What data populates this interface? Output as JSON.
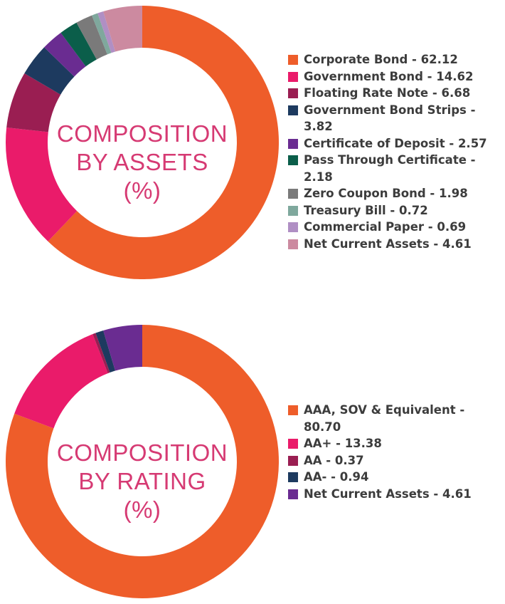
{
  "chart_data": [
    {
      "type": "pie",
      "donut": true,
      "center_label": [
        "COMPOSITION",
        "BY ASSETS",
        "(%)"
      ],
      "legend_position": "right",
      "slices": [
        {
          "label": "Corporate Bond - 62.12",
          "value": 62.12,
          "color": "#ee5d2a"
        },
        {
          "label": "Government Bond - 14.62",
          "value": 14.62,
          "color": "#ea1b6a"
        },
        {
          "label": "Floating Rate Note - 6.68",
          "value": 6.68,
          "color": "#9a1e52"
        },
        {
          "label": "Government Bond Strips - 3.82",
          "value": 3.82,
          "color": "#1d3a5f"
        },
        {
          "label": "Certificate of Deposit - 2.57",
          "value": 2.57,
          "color": "#6a2c91"
        },
        {
          "label": "Pass Through Certificate - 2.18",
          "value": 2.18,
          "color": "#0b5e4a"
        },
        {
          "label": "Zero Coupon Bond - 1.98",
          "value": 1.98,
          "color": "#7a7a7a"
        },
        {
          "label": "Treasury Bill - 0.72",
          "value": 0.72,
          "color": "#7fa89d"
        },
        {
          "label": "Commercial Paper - 0.69",
          "value": 0.69,
          "color": "#b08fc4"
        },
        {
          "label": "Net Current Assets - 4.61",
          "value": 4.61,
          "color": "#cc8aa0"
        }
      ]
    },
    {
      "type": "pie",
      "donut": true,
      "center_label": [
        "COMPOSITION",
        "BY RATING",
        "(%)"
      ],
      "legend_position": "right",
      "slices": [
        {
          "label": "AAA, SOV & Equivalent - 80.70",
          "value": 80.7,
          "color": "#ee5d2a"
        },
        {
          "label": "AA+ - 13.38",
          "value": 13.38,
          "color": "#ea1b6a"
        },
        {
          "label": "AA - 0.37",
          "value": 0.37,
          "color": "#9a1e52"
        },
        {
          "label": "AA- - 0.94",
          "value": 0.94,
          "color": "#1d3a5f"
        },
        {
          "label": "Net Current Assets - 4.61",
          "value": 4.61,
          "color": "#6a2c91"
        }
      ]
    }
  ]
}
